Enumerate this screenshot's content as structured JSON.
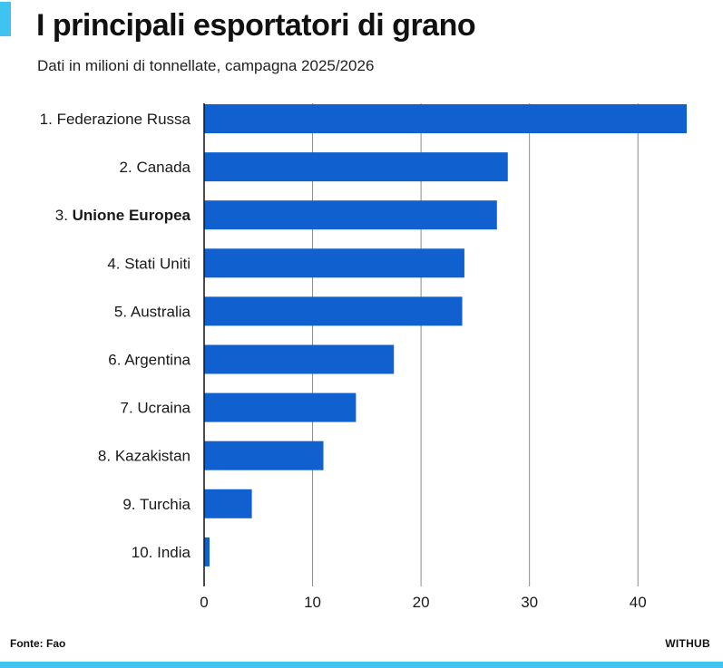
{
  "header": {
    "title": "I principali esportatori di grano",
    "subtitle": "Dati in milioni di tonnellate, campagna 2025/2026"
  },
  "colors": {
    "accent": "#3fc3f0",
    "bar": "#1060d0",
    "grid": "#8a8a8a",
    "axis": "#111111"
  },
  "footer": {
    "source": "Fonte: Fao",
    "brand": "WITHUB"
  },
  "chart_data": {
    "type": "bar",
    "orientation": "horizontal",
    "categories": [
      "1. Federazione Russa",
      "2. Canada",
      "3. Unione Europea",
      "4. Stati Uniti",
      "5. Australia",
      "6. Argentina",
      "7. Ucraina",
      "8. Kazakistan",
      "9. Turchia",
      "10. India"
    ],
    "category_parts": [
      {
        "rank": "1.",
        "name": "Federazione Russa"
      },
      {
        "rank": "2.",
        "name": "Canada"
      },
      {
        "rank": "3.",
        "name": "Unione Europea"
      },
      {
        "rank": "4.",
        "name": "Stati Uniti"
      },
      {
        "rank": "5.",
        "name": "Australia"
      },
      {
        "rank": "6.",
        "name": "Argentina"
      },
      {
        "rank": "7.",
        "name": "Ucraina"
      },
      {
        "rank": "8.",
        "name": "Kazakistan"
      },
      {
        "rank": "9.",
        "name": "Turchia"
      },
      {
        "rank": "10.",
        "name": "India"
      }
    ],
    "values": [
      44.5,
      28,
      27,
      24,
      23.8,
      17.5,
      14,
      11,
      4.4,
      0.5
    ],
    "highlight": "3. Unione Europea",
    "xlim": [
      0,
      45
    ],
    "xticks": [
      0,
      10,
      20,
      30,
      40
    ],
    "grid": true,
    "xlabel": "",
    "ylabel": ""
  }
}
